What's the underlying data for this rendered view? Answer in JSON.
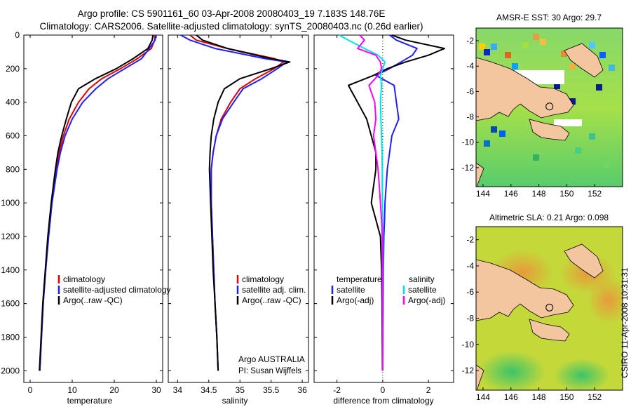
{
  "header": {
    "line1": "Argo profile: CS 5901161_60 03-Apr-2008 20080403_19 7.183S 148.76E",
    "line2": "Climatology: CARS2006. Satellite-adjusted climatology: synTS_20080403.nc (0.26d earlier)"
  },
  "side_text": "CSIRO 11-Apr-2008 10:31:31",
  "colors": {
    "climatology": "#e00000",
    "satellite": "#1e1eff",
    "argo": "#000000",
    "sat_sal": "#00e0e0",
    "argo_sal": "#ff00ff",
    "land": "#f4c6a0"
  },
  "chart_data": [
    {
      "type": "line",
      "panel": "temperature",
      "xlabel": "temperature",
      "xlim": [
        -1.5,
        31.5
      ],
      "ylim": [
        2070,
        0
      ],
      "yticks": [
        "0",
        "200",
        "400",
        "600",
        "800",
        "1000",
        "1200",
        "1400",
        "1600",
        "1800",
        "2000"
      ],
      "xticks": [
        "0",
        "10",
        "20",
        "30"
      ],
      "y": [
        0,
        30,
        80,
        140,
        200,
        260,
        320,
        400,
        500,
        600,
        700,
        800,
        1000,
        1200,
        1400,
        1600,
        1800,
        2000
      ],
      "series": [
        {
          "name": "climatology",
          "color_key": "climatology",
          "x": [
            29.6,
            29.6,
            28.8,
            25.5,
            21.5,
            17.0,
            14.0,
            11.5,
            9.3,
            7.9,
            6.9,
            6.2,
            5.1,
            4.3,
            3.7,
            3.1,
            2.7,
            2.3
          ]
        },
        {
          "name": "satellite-adjusted climatology",
          "color_key": "satellite",
          "x": [
            29.9,
            29.7,
            28.3,
            26.5,
            22.5,
            18.5,
            15.6,
            12.5,
            10.0,
            8.3,
            7.2,
            6.4,
            5.2,
            4.4,
            3.7,
            3.1,
            2.7,
            2.3
          ]
        },
        {
          "name": "Argo(..raw -QC)",
          "color_key": "argo",
          "x": [
            29.2,
            29.0,
            28.0,
            24.5,
            20.5,
            15.5,
            11.5,
            9.8,
            8.6,
            7.5,
            6.6,
            6.0,
            5.0,
            4.2,
            3.6,
            3.0,
            2.6,
            2.2
          ]
        }
      ],
      "legend": [
        "climatology",
        "satellite-adjusted climatology",
        "Argo(..raw -QC)"
      ]
    },
    {
      "type": "line",
      "panel": "salinity",
      "xlabel": "salinity",
      "xlim": [
        33.85,
        36.1
      ],
      "ylim": [
        2070,
        0
      ],
      "xticks": [
        "34",
        "34.5",
        "35",
        "35.5",
        "36"
      ],
      "y": [
        0,
        30,
        80,
        140,
        160,
        200,
        260,
        320,
        400,
        500,
        600,
        700,
        800,
        1000,
        1200,
        1400,
        1600,
        1800,
        2000
      ],
      "series": [
        {
          "name": "climatology",
          "color_key": "climatology",
          "x": [
            34.2,
            34.3,
            34.8,
            35.55,
            35.7,
            35.55,
            35.25,
            35.0,
            34.85,
            34.7,
            34.62,
            34.57,
            34.54,
            34.54,
            34.56,
            34.58,
            34.6,
            34.63,
            34.65
          ]
        },
        {
          "name": "satellite adj. clim.",
          "color_key": "satellite",
          "x": [
            34.05,
            34.2,
            34.6,
            35.4,
            35.75,
            35.6,
            35.35,
            35.05,
            34.9,
            34.72,
            34.62,
            34.57,
            34.54,
            34.54,
            34.56,
            34.58,
            34.6,
            34.63,
            34.65
          ]
        },
        {
          "name": "Argo(..raw -QC)",
          "color_key": "argo",
          "x": [
            34.3,
            34.4,
            34.8,
            35.5,
            35.8,
            35.5,
            35.0,
            34.75,
            34.65,
            34.58,
            34.54,
            34.52,
            34.51,
            34.53,
            34.55,
            34.57,
            34.6,
            34.63,
            34.65
          ]
        }
      ],
      "legend": [
        "climatology",
        "satellite adj. clim.",
        "Argo(..raw -QC)"
      ],
      "annotation1": "Argo AUSTRALIA",
      "annotation2": "PI: Susan Wijffels"
    },
    {
      "type": "line",
      "panel": "difference",
      "xlabel": "difference from climatology",
      "xlim": [
        -3.0,
        3.1
      ],
      "ylim": [
        2070,
        0
      ],
      "xticks": [
        "-2",
        "0",
        "2"
      ],
      "y": [
        0,
        30,
        80,
        120,
        160,
        200,
        240,
        300,
        400,
        500,
        600,
        700,
        800,
        900,
        1000,
        1100,
        1200,
        1400,
        1600,
        1800,
        2000
      ],
      "series": [
        {
          "name": "temperature satellite",
          "color_key": "satellite",
          "x": [
            0.3,
            0.6,
            1.5,
            1.3,
            0.8,
            0.3,
            -0.3,
            0.5,
            0.6,
            0.7,
            0.4,
            0.3,
            0.2,
            0.15,
            0.1,
            0.08,
            0.05,
            0.03,
            0.02,
            0.01,
            0.0
          ]
        },
        {
          "name": "temperature Argo(-adj)",
          "color_key": "argo",
          "x": [
            0.4,
            1.0,
            2.7,
            2.0,
            1.0,
            0.2,
            -0.4,
            -1.5,
            -1.1,
            -0.7,
            -0.5,
            -0.3,
            -0.3,
            -0.4,
            -0.5,
            -0.3,
            -0.1,
            -0.05,
            -0.03,
            -0.02,
            -0.01
          ]
        },
        {
          "name": "salinity satellite",
          "color_key": "sat_sal",
          "x": [
            -1.9,
            -1.5,
            -0.8,
            -0.2,
            0.1,
            0.0,
            -0.1,
            -0.05,
            -0.1,
            -0.08,
            -0.05,
            -0.03,
            -0.02,
            -0.02,
            -0.01,
            0.0,
            0.0,
            0.0,
            0.0,
            0.0,
            0.0
          ]
        },
        {
          "name": "salinity Argo(-adj)",
          "color_key": "argo_sal",
          "x": [
            -1.0,
            -0.8,
            -1.1,
            -0.3,
            -0.1,
            -0.05,
            -0.2,
            -0.6,
            -0.35,
            -0.3,
            -0.4,
            -0.3,
            -0.2,
            -0.15,
            -0.1,
            -0.05,
            -0.02,
            -0.02,
            -0.01,
            0.0,
            0.0
          ]
        }
      ],
      "legend_left_title": "temperature",
      "legend_right_title": "salinity",
      "legend_labels": [
        "satellite",
        "Argo(-adj)"
      ]
    },
    {
      "type": "heatmap",
      "panel": "sst_map",
      "title": "AMSR-E SST: 30 Argo: 29.7",
      "xticks": [
        "144",
        "146",
        "148",
        "150",
        "152"
      ],
      "yticks": [
        "-2",
        "-4",
        "-6",
        "-8",
        "-10",
        "-12"
      ],
      "lon_range": [
        143.5,
        154.0
      ],
      "lat_range": [
        -13.5,
        -1.0
      ],
      "marker": {
        "lon": 148.76,
        "lat": -7.183
      }
    },
    {
      "type": "heatmap",
      "panel": "sla_map",
      "title": "Altimetric SLA: 0.21 Argo: 0.098",
      "xticks": [
        "144",
        "146",
        "148",
        "150",
        "152"
      ],
      "yticks": [
        "-2",
        "-4",
        "-6",
        "-8",
        "-10",
        "-12"
      ],
      "lon_range": [
        143.5,
        154.0
      ],
      "lat_range": [
        -13.5,
        -1.0
      ],
      "marker": {
        "lon": 148.76,
        "lat": -7.183
      }
    }
  ]
}
